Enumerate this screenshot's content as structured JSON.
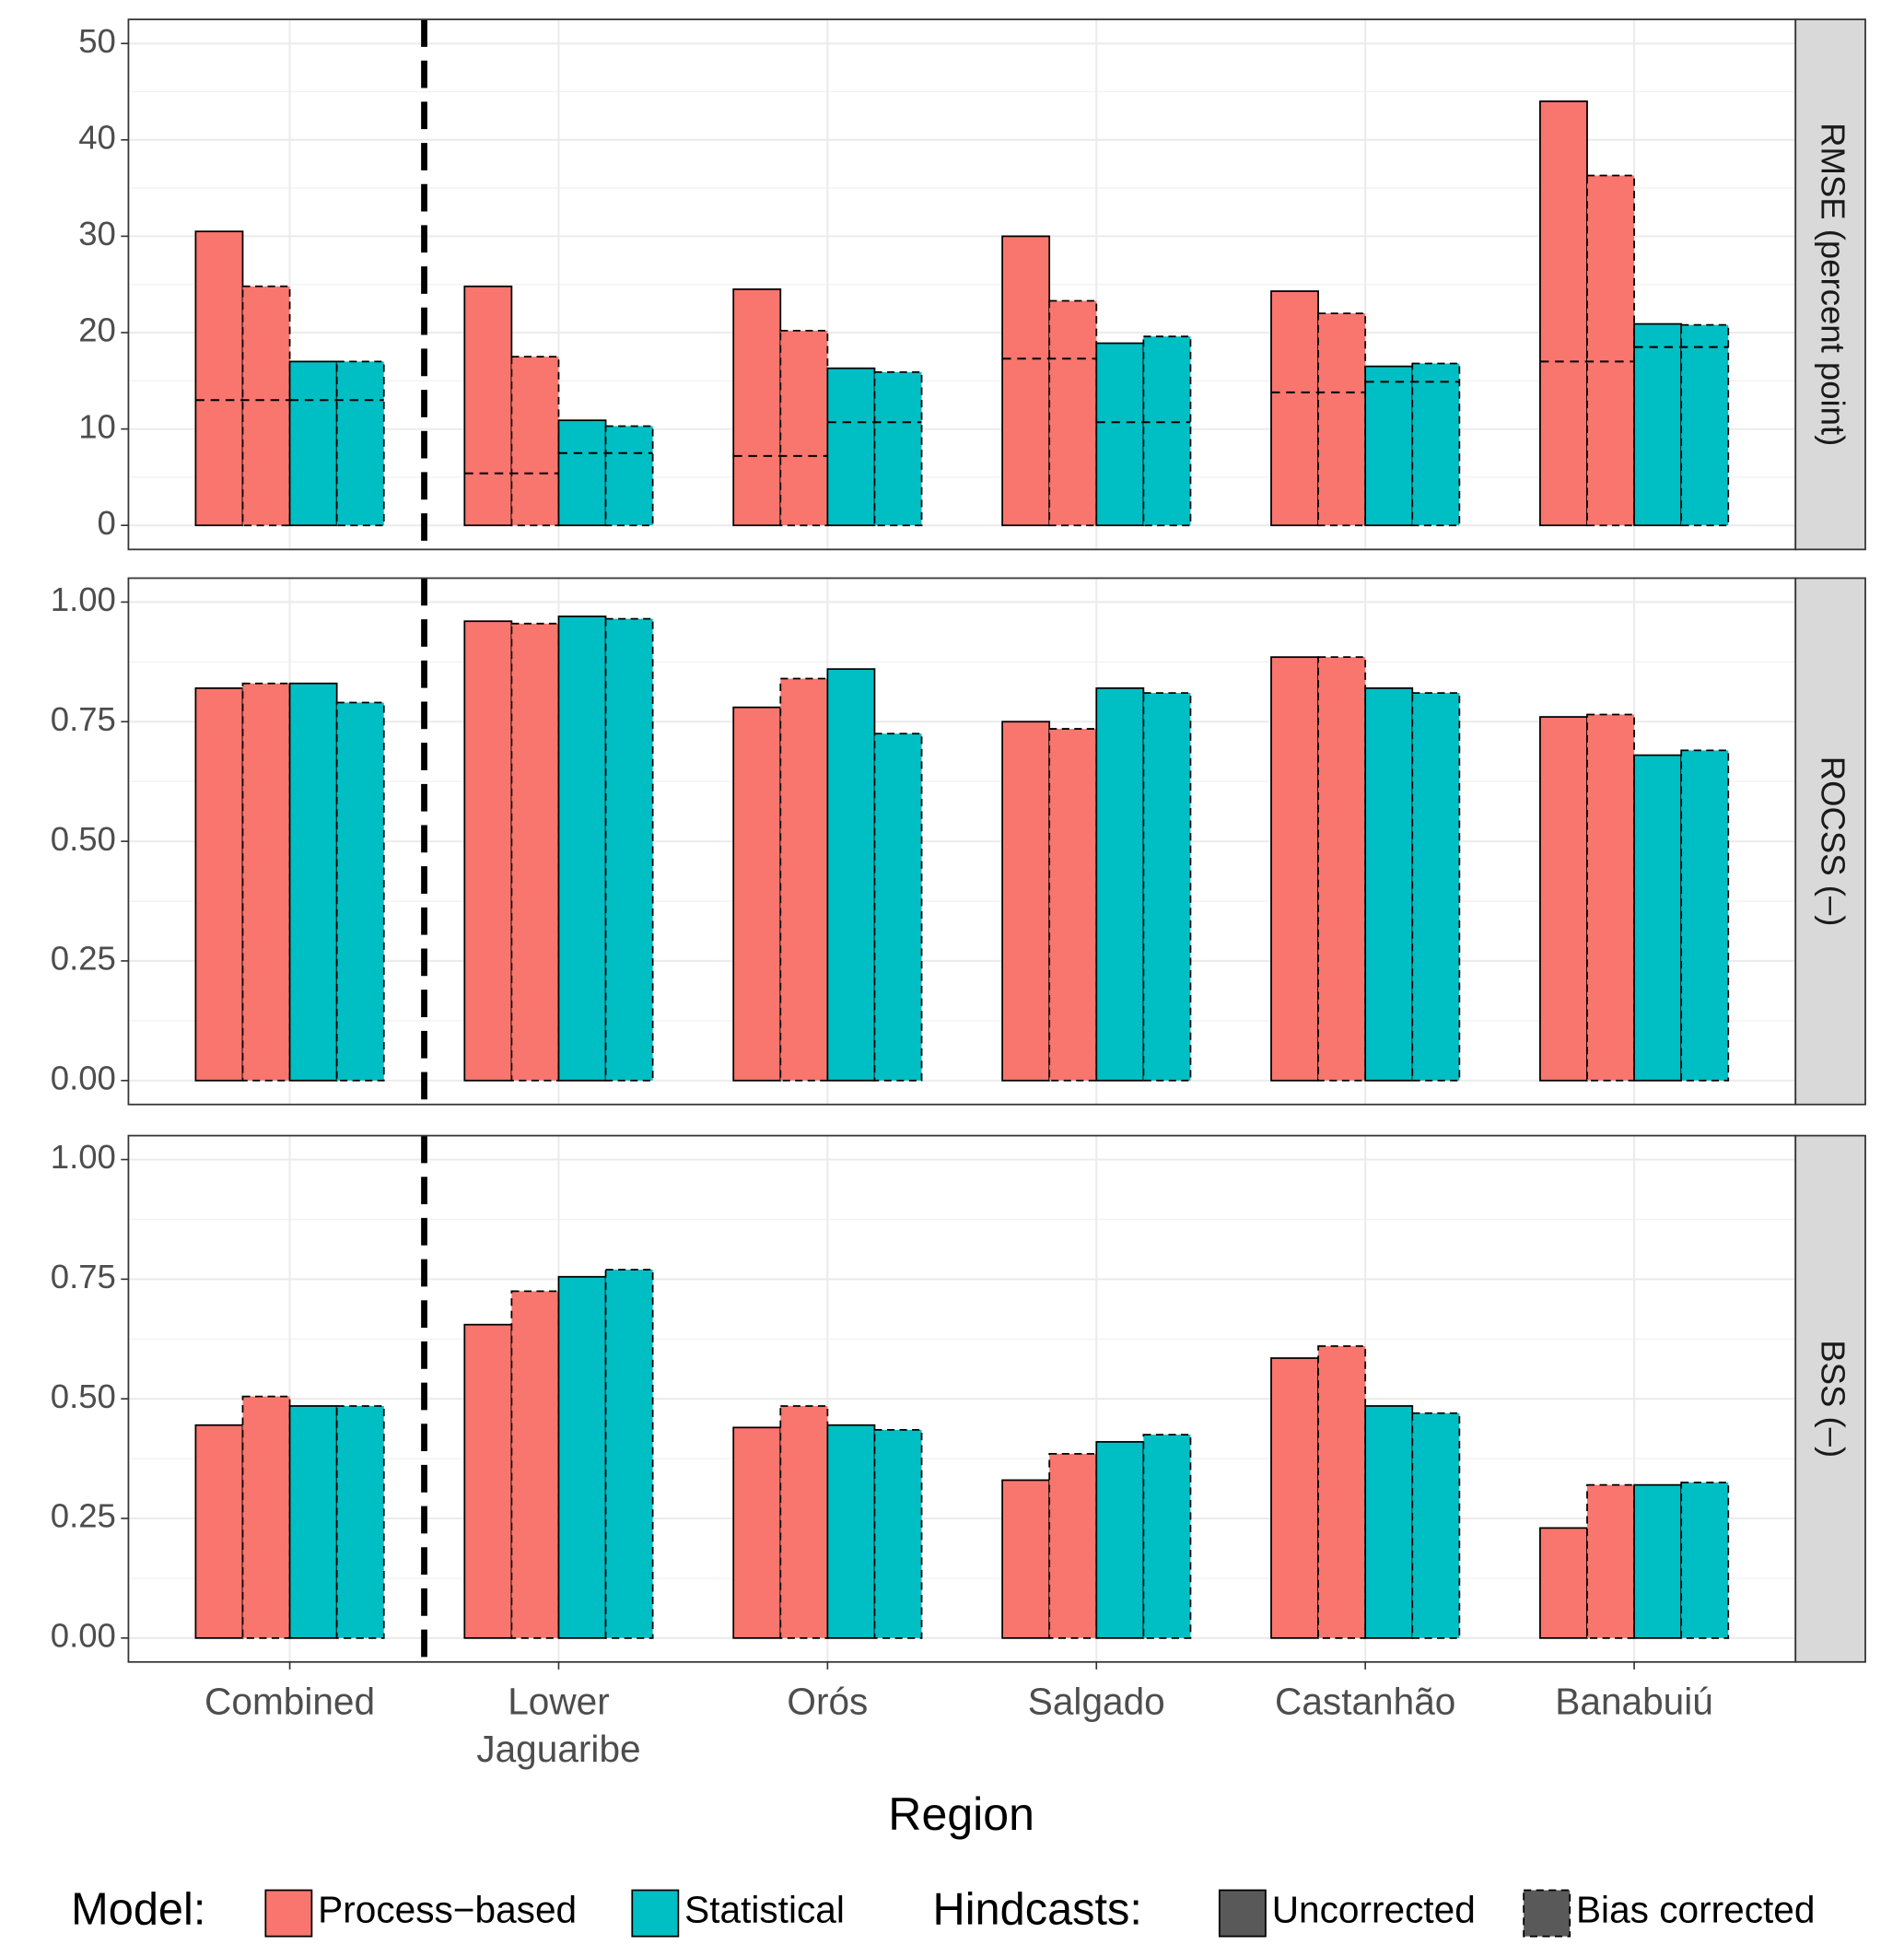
{
  "chart_data": [
    {
      "type": "bar",
      "strip": "RMSE (percent point)",
      "ylim": [
        -2.5,
        52.5
      ],
      "yticks": [
        0,
        10,
        20,
        30,
        40,
        50
      ],
      "values": [
        [
          [
            30.5,
            24.8,
            24.5,
            30,
            24.3,
            44
          ],
          [
            24.8,
            17.5,
            20.2,
            23.3,
            22,
            36.3
          ]
        ],
        [
          [
            17,
            10.9,
            16.3,
            18.9,
            16.5,
            20.9
          ],
          [
            17,
            10.3,
            15.9,
            19.6,
            16.8,
            20.8
          ]
        ]
      ],
      "reference_levels": [
        [
          13,
          5.4,
          7.2,
          17.3,
          13.8,
          17
        ],
        [
          13,
          7.5,
          10.7,
          10.7,
          14.9,
          18.5
        ]
      ]
    },
    {
      "type": "bar",
      "strip": "ROCSS (–)",
      "ylim": [
        -0.05,
        1.05
      ],
      "yticks": [
        {
          "value": 0,
          "label": "0.00"
        },
        {
          "value": 0.25,
          "label": "0.25"
        },
        {
          "value": 0.5,
          "label": "0.50"
        },
        {
          "value": 0.75,
          "label": "0.75"
        },
        {
          "value": 1,
          "label": "1.00"
        }
      ],
      "values": [
        [
          [
            0.82,
            0.96,
            0.78,
            0.75,
            0.885,
            0.76
          ],
          [
            0.83,
            0.955,
            0.84,
            0.735,
            0.885,
            0.765
          ]
        ],
        [
          [
            0.83,
            0.97,
            0.86,
            0.82,
            0.82,
            0.68
          ],
          [
            0.79,
            0.965,
            0.725,
            0.81,
            0.81,
            0.69
          ]
        ]
      ]
    },
    {
      "type": "bar",
      "strip": "BSS (–)",
      "ylim": [
        -0.05,
        1.05
      ],
      "yticks": [
        {
          "value": 0,
          "label": "0.00"
        },
        {
          "value": 0.25,
          "label": "0.25"
        },
        {
          "value": 0.5,
          "label": "0.50"
        },
        {
          "value": 0.75,
          "label": "0.75"
        },
        {
          "value": 1,
          "label": "1.00"
        }
      ],
      "values": [
        [
          [
            0.445,
            0.655,
            0.44,
            0.33,
            0.585,
            0.23
          ],
          [
            0.505,
            0.725,
            0.485,
            0.385,
            0.61,
            0.32
          ]
        ],
        [
          [
            0.485,
            0.755,
            0.445,
            0.41,
            0.485,
            0.32
          ],
          [
            0.485,
            0.77,
            0.435,
            0.425,
            0.47,
            0.325
          ]
        ]
      ],
      "categories": [
        [
          "Combined"
        ],
        [
          "Lower",
          "Jaguaribe"
        ],
        [
          "Orós"
        ],
        [
          "Salgado"
        ],
        [
          "Castanhão"
        ],
        [
          "Banabuiú"
        ]
      ],
      "x_label": "Region"
    }
  ],
  "legend": {
    "model_title": "Model:",
    "models": [
      {
        "name": "Process−based",
        "color": "#f8766d"
      },
      {
        "name": "Statistical",
        "color": "#00bfc4"
      }
    ],
    "hindcast_title": "Hindcasts:",
    "hindcasts": [
      {
        "name": "Uncorrected",
        "dashed": false
      },
      {
        "name": "Bias corrected",
        "dashed": true
      }
    ]
  }
}
